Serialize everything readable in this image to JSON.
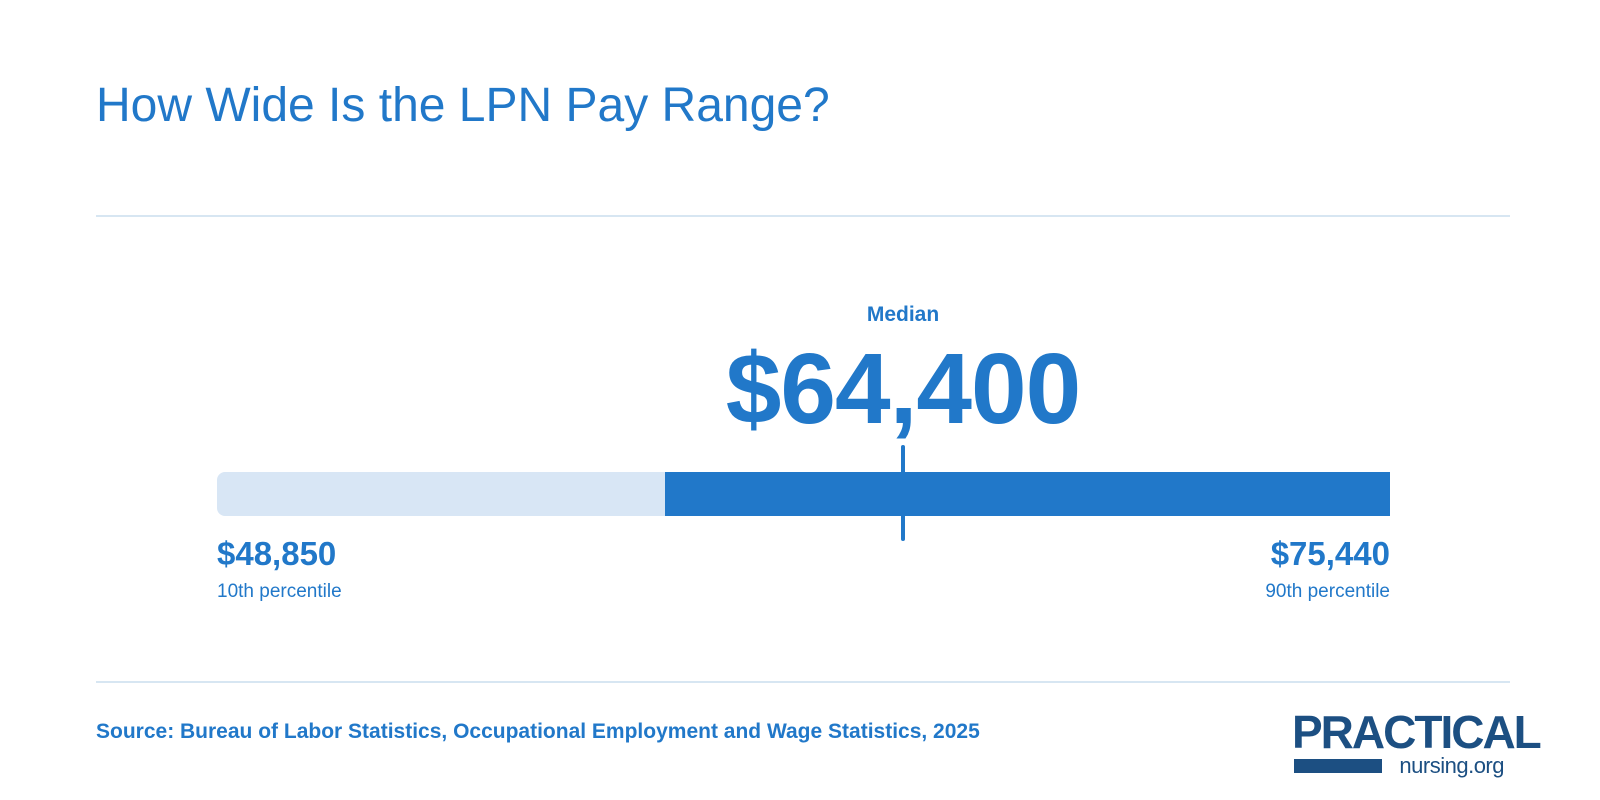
{
  "title": "How Wide Is the LPN Pay Range?",
  "colors": {
    "accent": "#2178c9",
    "track": "#d8e6f5",
    "divider": "#d7e6f2",
    "logo": "#1c4f82"
  },
  "chart_data": {
    "type": "range",
    "title": "How Wide Is the LPN Pay Range?",
    "median": {
      "label": "Median",
      "value": 64400,
      "display": "$64,400"
    },
    "low": {
      "label": "10th percentile",
      "value": 48850,
      "display": "$48,850"
    },
    "high": {
      "label": "90th percentile",
      "value": 75440,
      "display": "$75,440"
    },
    "fill_start_fraction": 0.382
  },
  "source": "Source: Bureau of Labor Statistics, Occupational Employment and Wage Statistics, 2025",
  "logo": {
    "top": "PRACTICAL",
    "sub": "nursing.org"
  }
}
